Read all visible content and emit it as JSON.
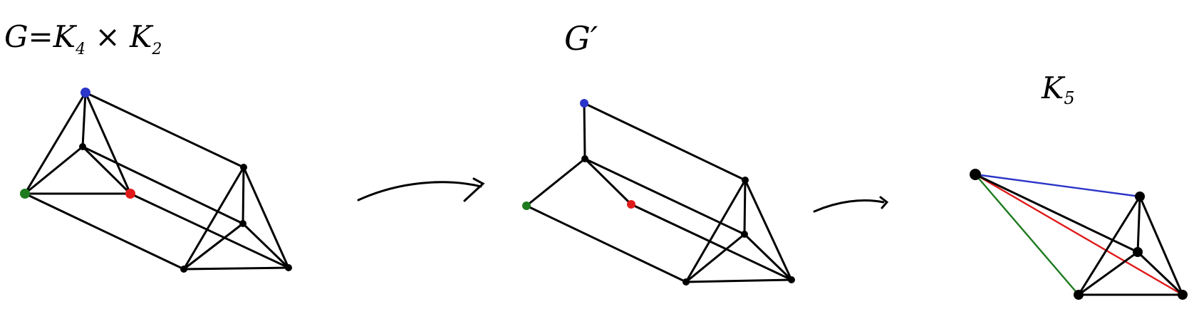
{
  "diagrams": [
    {
      "id": "g",
      "label": "G=K",
      "label_sub1": "4",
      "label_x": " × K",
      "label_sub2": "2",
      "vertices": [
        {
          "id": "b",
          "color": "#2b35c8"
        },
        {
          "id": "g",
          "color": "#1f7a1f"
        },
        {
          "id": "r",
          "color": "#e01a1a"
        },
        {
          "id": "m",
          "color": "#000000"
        },
        {
          "id": "p",
          "color": "#000000"
        },
        {
          "id": "q",
          "color": "#000000"
        },
        {
          "id": "s",
          "color": "#000000"
        },
        {
          "id": "t",
          "color": "#000000"
        }
      ],
      "edges": [
        [
          "b",
          "g"
        ],
        [
          "b",
          "m"
        ],
        [
          "b",
          "r"
        ],
        [
          "m",
          "g"
        ],
        [
          "m",
          "r"
        ],
        [
          "g",
          "r"
        ],
        [
          "b",
          "p"
        ],
        [
          "m",
          "q"
        ],
        [
          "g",
          "s"
        ],
        [
          "r",
          "t"
        ],
        [
          "p",
          "q"
        ],
        [
          "p",
          "s"
        ],
        [
          "p",
          "t"
        ],
        [
          "q",
          "s"
        ],
        [
          "q",
          "t"
        ],
        [
          "s",
          "t"
        ]
      ]
    },
    {
      "id": "g-prime",
      "label": "G′",
      "vertices": [
        {
          "id": "b",
          "color": "#2b35c8"
        },
        {
          "id": "g",
          "color": "#1f7a1f"
        },
        {
          "id": "r",
          "color": "#e01a1a"
        },
        {
          "id": "m",
          "color": "#000000"
        },
        {
          "id": "p",
          "color": "#000000"
        },
        {
          "id": "q",
          "color": "#000000"
        },
        {
          "id": "s",
          "color": "#000000"
        },
        {
          "id": "t",
          "color": "#000000"
        }
      ],
      "edges": [
        [
          "b",
          "m"
        ],
        [
          "m",
          "g"
        ],
        [
          "m",
          "r"
        ],
        [
          "b",
          "p"
        ],
        [
          "m",
          "q"
        ],
        [
          "g",
          "s"
        ],
        [
          "r",
          "t"
        ],
        [
          "p",
          "q"
        ],
        [
          "p",
          "s"
        ],
        [
          "p",
          "t"
        ],
        [
          "q",
          "s"
        ],
        [
          "q",
          "t"
        ],
        [
          "s",
          "t"
        ]
      ]
    },
    {
      "id": "k5",
      "label": "K",
      "label_sub1": "5",
      "vertices": [
        {
          "id": "c",
          "color": "#000000"
        },
        {
          "id": "p",
          "color": "#000000"
        },
        {
          "id": "q",
          "color": "#000000"
        },
        {
          "id": "s",
          "color": "#000000"
        },
        {
          "id": "t",
          "color": "#000000"
        }
      ],
      "edges": [
        {
          "from": "c",
          "to": "p",
          "color": "#2b35c8"
        },
        {
          "from": "c",
          "to": "s",
          "color": "#1f7a1f"
        },
        {
          "from": "c",
          "to": "t",
          "color": "#e01a1a"
        },
        {
          "from": "c",
          "to": "q",
          "color": "#000000"
        },
        {
          "from": "p",
          "to": "q",
          "color": "#000000"
        },
        {
          "from": "p",
          "to": "s",
          "color": "#000000"
        },
        {
          "from": "p",
          "to": "t",
          "color": "#000000"
        },
        {
          "from": "q",
          "to": "s",
          "color": "#000000"
        },
        {
          "from": "q",
          "to": "t",
          "color": "#000000"
        },
        {
          "from": "s",
          "to": "t",
          "color": "#000000"
        }
      ]
    }
  ],
  "arrows": [
    {
      "id": "arrow-1",
      "from": "g",
      "to": "g-prime"
    },
    {
      "id": "arrow-2",
      "from": "g-prime",
      "to": "k5"
    }
  ]
}
